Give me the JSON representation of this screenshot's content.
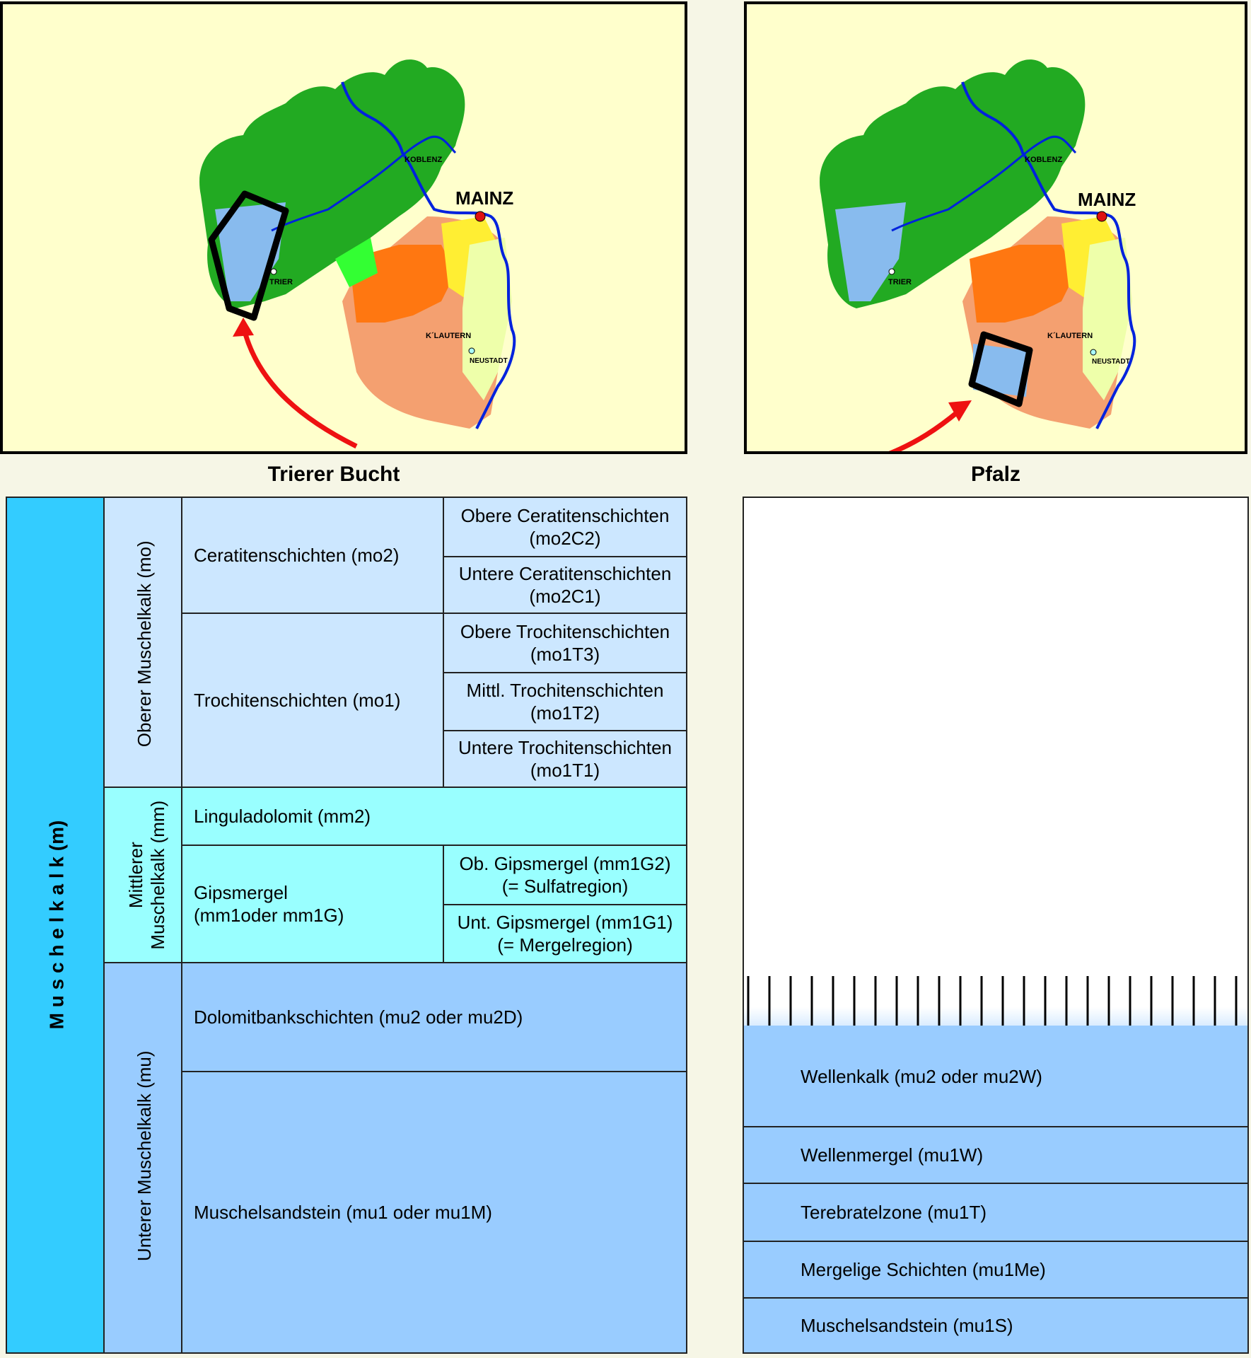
{
  "maps": [
    {
      "title": "Trierer Bucht",
      "city_labels": {
        "mainz": "MAINZ",
        "koblenz": "KOBLENZ",
        "trier": "TRIER",
        "klautern": "K´LAUTERN",
        "neustadt": "NEUSTADT"
      }
    },
    {
      "title": "Pfalz",
      "city_labels": {
        "mainz": "MAINZ",
        "koblenz": "KOBLENZ",
        "trier": "TRIER",
        "klautern": "K´LAUTERN",
        "neustadt": "NEUSTADT"
      }
    }
  ],
  "colors": {
    "muschelkalk": "#33ccff",
    "oberer": "#cce7ff",
    "mittlerer": "#99ffff",
    "unterer": "#99ccff",
    "panel_background": "#ffffcc",
    "arrow": "#ee1111",
    "river": "#0022dd"
  },
  "stratigraphy": {
    "group": "M u s c h e l k a l k   (m)",
    "oberer": {
      "label": "Oberer Muschelkalk (mo)",
      "ceratiten": {
        "label": "Ceratitenschichten (mo2)",
        "obere": [
          "Obere Ceratitenschichten",
          "(mo2C2)"
        ],
        "untere": [
          "Untere Ceratitenschichten",
          "(mo2C1)"
        ]
      },
      "trochiten": {
        "label": "Trochitenschichten (mo1)",
        "obere": [
          "Obere Trochitenschichten",
          "(mo1T3)"
        ],
        "mittl": [
          "Mittl. Trochitenschichten",
          "(mo1T2)"
        ],
        "untere": [
          "Untere Trochitenschichten",
          "(mo1T1)"
        ]
      }
    },
    "mittlerer": {
      "label_line1": "Mittlerer",
      "label_line2": "Muschelkalk (mm)",
      "lingula": "Linguladolomit (mm2)",
      "gipsmergel": {
        "label_line1": "Gipsmergel",
        "label_line2": "(mm1oder mm1G)",
        "ob": [
          "Ob. Gipsmergel (mm1G2)",
          "(= Sulfatregion)"
        ],
        "unt": [
          "Unt. Gipsmergel (mm1G1)",
          "(= Mergelregion)"
        ]
      }
    },
    "unterer": {
      "label": "Unterer Muschelkalk (mu)",
      "dolomitbank": "Dolomitbankschichten (mu2 oder mu2D)",
      "muschelsandstein": "Muschelsandstein (mu1 oder mu1M)"
    },
    "pfalz_column": [
      "Wellenkalk (mu2 oder mu2W)",
      "Wellenmergel (mu1W)",
      "Terebratelzone (mu1T)",
      "Mergelige Schichten (mu1Me)",
      "Muschelsandstein (mu1S)"
    ]
  }
}
